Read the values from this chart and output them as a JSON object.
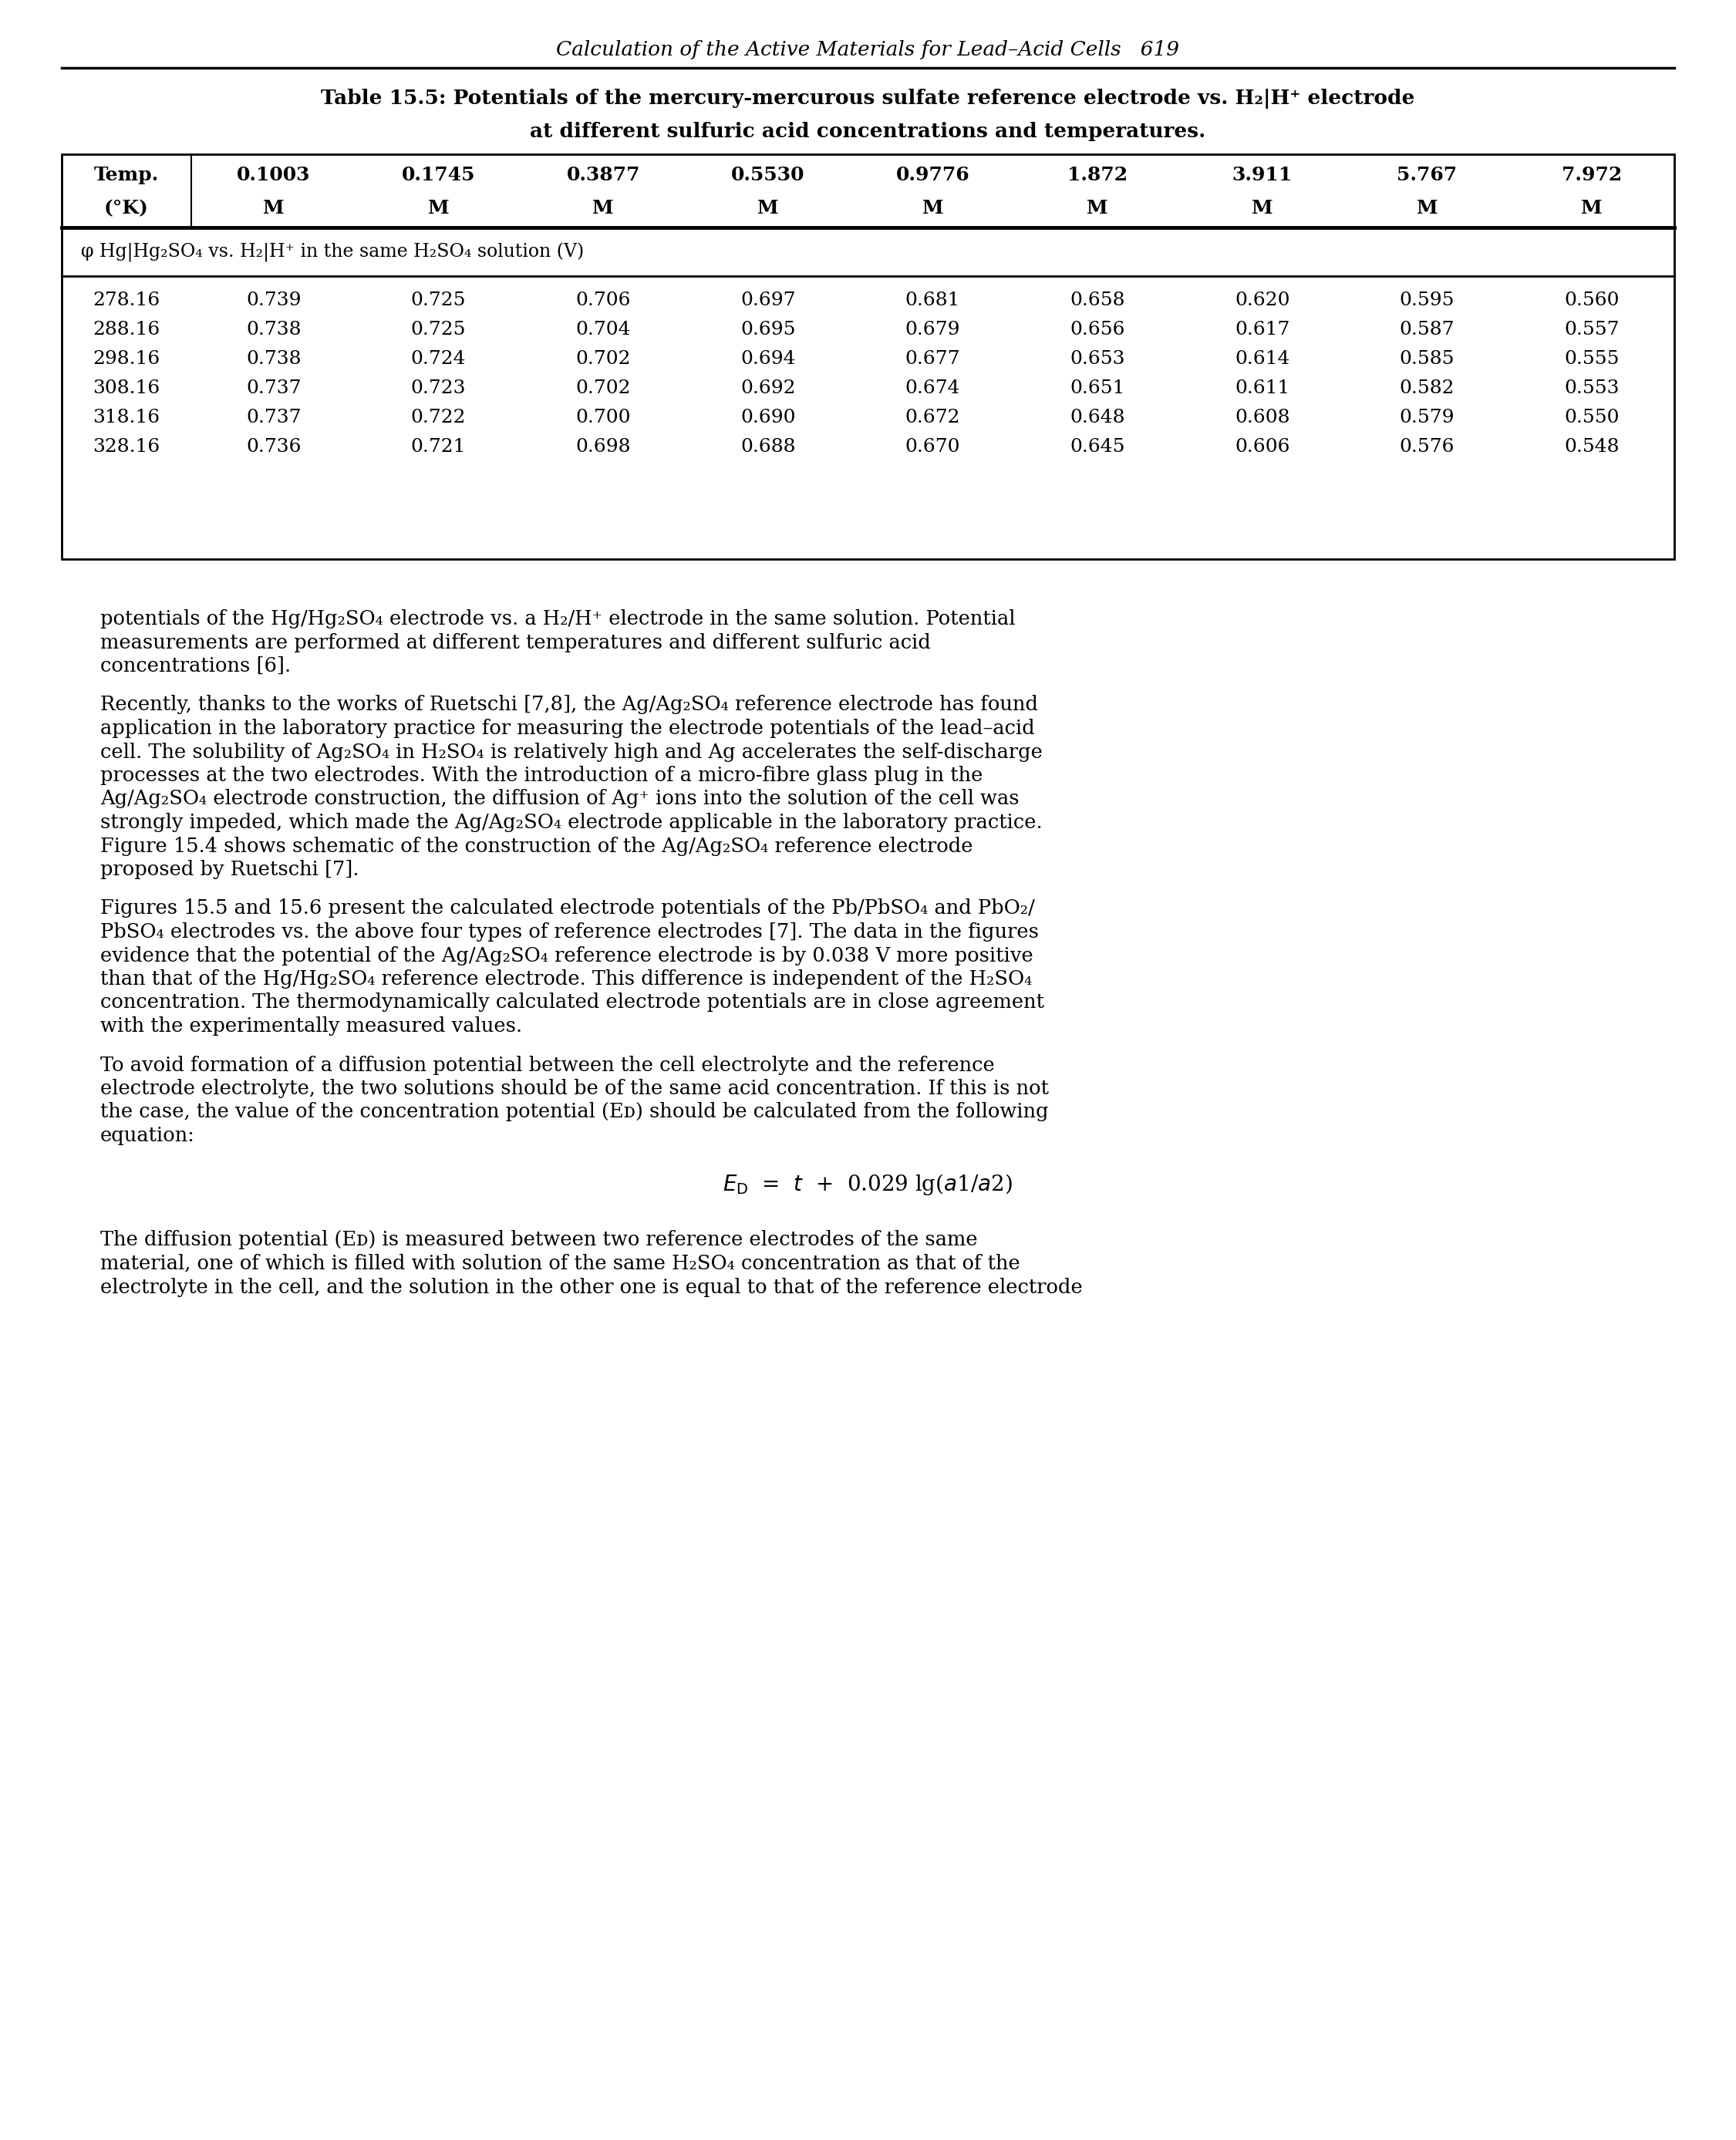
{
  "page_header": "Calculation of the Active Materials for Lead–Acid Cells   619",
  "col_headers_row1": [
    "Temp.",
    "0.1003",
    "0.1745",
    "0.3877",
    "0.5530",
    "0.9776",
    "1.872",
    "3.911",
    "5.767",
    "7.972"
  ],
  "col_headers_row2": [
    "(°K)",
    "M",
    "M",
    "M",
    "M",
    "M",
    "M",
    "M",
    "M",
    "M"
  ],
  "subheader": "φ Hg|Hg₂SO₄ vs. H₂|H⁺ in the same H₂SO₄ solution (V)",
  "data_rows": [
    [
      "278.16",
      "0.739",
      "0.725",
      "0.706",
      "0.697",
      "0.681",
      "0.658",
      "0.620",
      "0.595",
      "0.560"
    ],
    [
      "288.16",
      "0.738",
      "0.725",
      "0.704",
      "0.695",
      "0.679",
      "0.656",
      "0.617",
      "0.587",
      "0.557"
    ],
    [
      "298.16",
      "0.738",
      "0.724",
      "0.702",
      "0.694",
      "0.677",
      "0.653",
      "0.614",
      "0.585",
      "0.555"
    ],
    [
      "308.16",
      "0.737",
      "0.723",
      "0.702",
      "0.692",
      "0.674",
      "0.651",
      "0.611",
      "0.582",
      "0.553"
    ],
    [
      "318.16",
      "0.737",
      "0.722",
      "0.700",
      "0.690",
      "0.672",
      "0.648",
      "0.608",
      "0.579",
      "0.550"
    ],
    [
      "328.16",
      "0.736",
      "0.721",
      "0.698",
      "0.688",
      "0.670",
      "0.645",
      "0.606",
      "0.576",
      "0.548"
    ]
  ],
  "para1_lines": [
    "potentials of the Hg/Hg₂SO₄ electrode vs. a H₂/H⁺ electrode in the same solution. Potential",
    "measurements are performed at different temperatures and different sulfuric acid",
    "concentrations [6]."
  ],
  "para2_lines": [
    "Recently, thanks to the works of Ruetschi [7,8], the Ag/Ag₂SO₄ reference electrode has found",
    "application in the laboratory practice for measuring the electrode potentials of the lead–acid",
    "cell. The solubility of Ag₂SO₄ in H₂SO₄ is relatively high and Ag accelerates the self-discharge",
    "processes at the two electrodes. With the introduction of a micro-fibre glass plug in the",
    "Ag/Ag₂SO₄ electrode construction, the diffusion of Ag⁺ ions into the solution of the cell was",
    "strongly impeded, which made the Ag/Ag₂SO₄ electrode applicable in the laboratory practice.",
    "Figure 15.4 shows schematic of the construction of the Ag/Ag₂SO₄ reference electrode",
    "proposed by Ruetschi [7]."
  ],
  "para3_lines": [
    "Figures 15.5 and 15.6 present the calculated electrode potentials of the Pb/PbSO₄ and PbO₂/",
    "PbSO₄ electrodes vs. the above four types of reference electrodes [7]. The data in the figures",
    "evidence that the potential of the Ag/Ag₂SO₄ reference electrode is by 0.038 V more positive",
    "than that of the Hg/Hg₂SO₄ reference electrode. This difference is independent of the H₂SO₄",
    "concentration. The thermodynamically calculated electrode potentials are in close agreement",
    "with the experimentally measured values."
  ],
  "para4_lines": [
    "To avoid formation of a diffusion potential between the cell electrolyte and the reference",
    "electrode electrolyte, the two solutions should be of the same acid concentration. If this is not",
    "the case, the value of the concentration potential (Eᴅ) should be calculated from the following",
    "equation:"
  ],
  "para5_lines": [
    "The diffusion potential (Eᴅ) is measured between two reference electrodes of the same",
    "material, one of which is filled with solution of the same H₂SO₄ concentration as that of the",
    "electrolyte in the cell, and the solution in the other one is equal to that of the reference electrode"
  ],
  "background_color": "#ffffff",
  "text_color": "#000000"
}
